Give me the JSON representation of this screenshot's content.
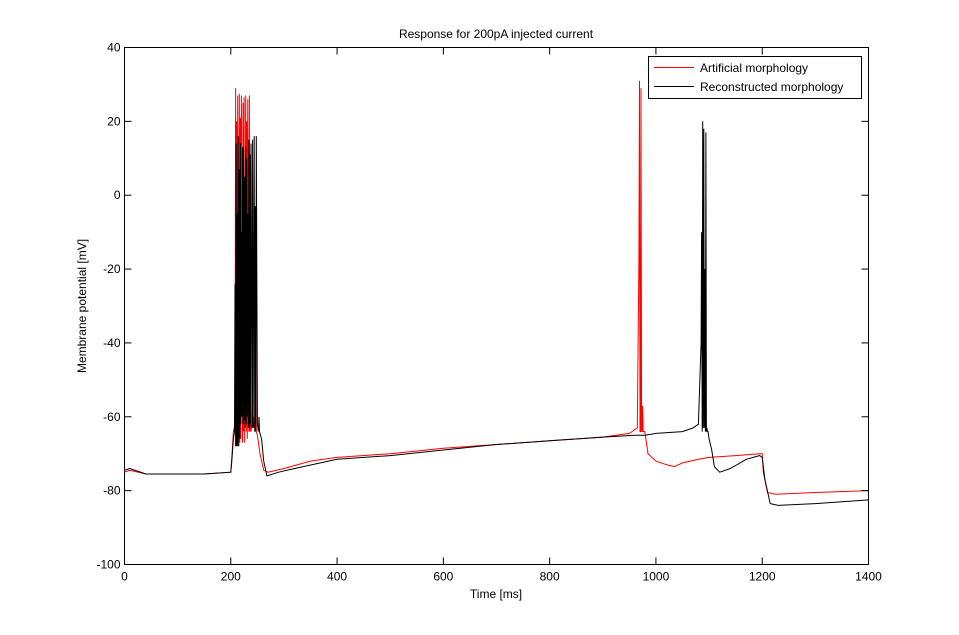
{
  "chart_data": {
    "type": "line",
    "title": "Response for 200pA injected current",
    "xlabel": "Time [ms]",
    "ylabel": "Membrane potential [mV]",
    "xlim": [
      0,
      1400
    ],
    "ylim": [
      -100,
      40
    ],
    "xticks": [
      0,
      200,
      400,
      600,
      800,
      1000,
      1200,
      1400
    ],
    "yticks": [
      -100,
      -80,
      -60,
      -40,
      -20,
      0,
      20,
      40
    ],
    "grid": false,
    "legend_position": "top-right",
    "series": [
      {
        "name": "Artificial morphology",
        "color": "#ff0000",
        "x": [
          0,
          10,
          40,
          80,
          150,
          200,
          202,
          205,
          208,
          209,
          210,
          211,
          212,
          213,
          214,
          216,
          217,
          218,
          219,
          220,
          222,
          223,
          224,
          225,
          226,
          228,
          229,
          230,
          231,
          232,
          234,
          235,
          236,
          237,
          238,
          240,
          241,
          242,
          243,
          244,
          246,
          247,
          248,
          250,
          255,
          262,
          270,
          300,
          350,
          400,
          500,
          600,
          700,
          800,
          900,
          950,
          965,
          968,
          969,
          970,
          971,
          972,
          973,
          974,
          975,
          976,
          977,
          978,
          979,
          985,
          1000,
          1020,
          1035,
          1050,
          1080,
          1100,
          1150,
          1195,
          1200,
          1202,
          1210,
          1225,
          1300,
          1400
        ],
        "y": [
          -75,
          -74.5,
          -75.5,
          -75.5,
          -75.5,
          -75,
          -71,
          -64,
          -62,
          29,
          -66,
          20,
          -67,
          27,
          -66,
          27.5,
          -67,
          21,
          -66,
          27,
          -67,
          25,
          -64,
          26.5,
          -67,
          27,
          -64,
          20,
          -66,
          26,
          -64,
          27,
          -64,
          -55,
          -64,
          -62,
          -45,
          -63,
          -60,
          -63,
          -62,
          -40,
          -64,
          -65,
          -70,
          -74.5,
          -75,
          -74,
          -72,
          -71,
          -70,
          -68.5,
          -67.5,
          -66.5,
          -65.5,
          -64.5,
          -63,
          -18,
          31,
          -64,
          -64,
          29,
          -64,
          -64,
          -57,
          -64,
          -64,
          -64,
          -64,
          -70,
          -72,
          -73,
          -73.5,
          -72.5,
          -71.5,
          -71,
          -70.5,
          -70,
          -70,
          -75,
          -80.5,
          -81,
          -80.5,
          -80
        ]
      },
      {
        "name": "Reconstructed morphology",
        "color": "#000000",
        "x": [
          0,
          10,
          40,
          80,
          150,
          200,
          202,
          205,
          207,
          208,
          209,
          210,
          211,
          212,
          213,
          214,
          215,
          216,
          217,
          218,
          219,
          220,
          221,
          222,
          223,
          224,
          225,
          226,
          227,
          228,
          229,
          230,
          231,
          232,
          233,
          234,
          235,
          236,
          237,
          238,
          240,
          241,
          242,
          244,
          245,
          246,
          247,
          248,
          250,
          252,
          253,
          254,
          256,
          258,
          262,
          268,
          290,
          320,
          400,
          500,
          600,
          700,
          800,
          900,
          960,
          980,
          1000,
          1050,
          1070,
          1080,
          1085,
          1086,
          1087,
          1088,
          1089,
          1090,
          1091,
          1092,
          1093,
          1094,
          1095,
          1096,
          1097,
          1098,
          1100,
          1105,
          1110,
          1120,
          1140,
          1170,
          1195,
          1200,
          1205,
          1215,
          1230,
          1300,
          1400
        ],
        "y": [
          -74.5,
          -74,
          -75.5,
          -75.5,
          -75.5,
          -75,
          -72,
          -66,
          -64,
          -24,
          -68,
          14,
          -68,
          -5,
          -68,
          16,
          -68,
          7,
          -66,
          14,
          -62,
          -10,
          -60,
          13,
          -62,
          13,
          -61,
          5,
          -63,
          13,
          -62,
          10,
          -60,
          -5,
          -63,
          15,
          -63,
          11,
          -62,
          14,
          -63,
          15,
          -63,
          16,
          -64,
          -3,
          -64,
          16,
          -62,
          -64,
          -60,
          -64,
          -65,
          -66,
          -72,
          -76,
          -75,
          -74,
          -71.5,
          -70.5,
          -69,
          -67.5,
          -66.5,
          -65.5,
          -65,
          -65,
          -64.5,
          -64,
          -63,
          -62,
          -40,
          -10,
          -64,
          20,
          -63,
          18,
          -63,
          -20,
          -64,
          17,
          -64,
          -63,
          -64,
          -64,
          -66,
          -69,
          -73.5,
          -75,
          -74,
          -71.5,
          -70.5,
          -71,
          -77,
          -83.5,
          -84,
          -83.5,
          -82.5
        ]
      }
    ]
  }
}
